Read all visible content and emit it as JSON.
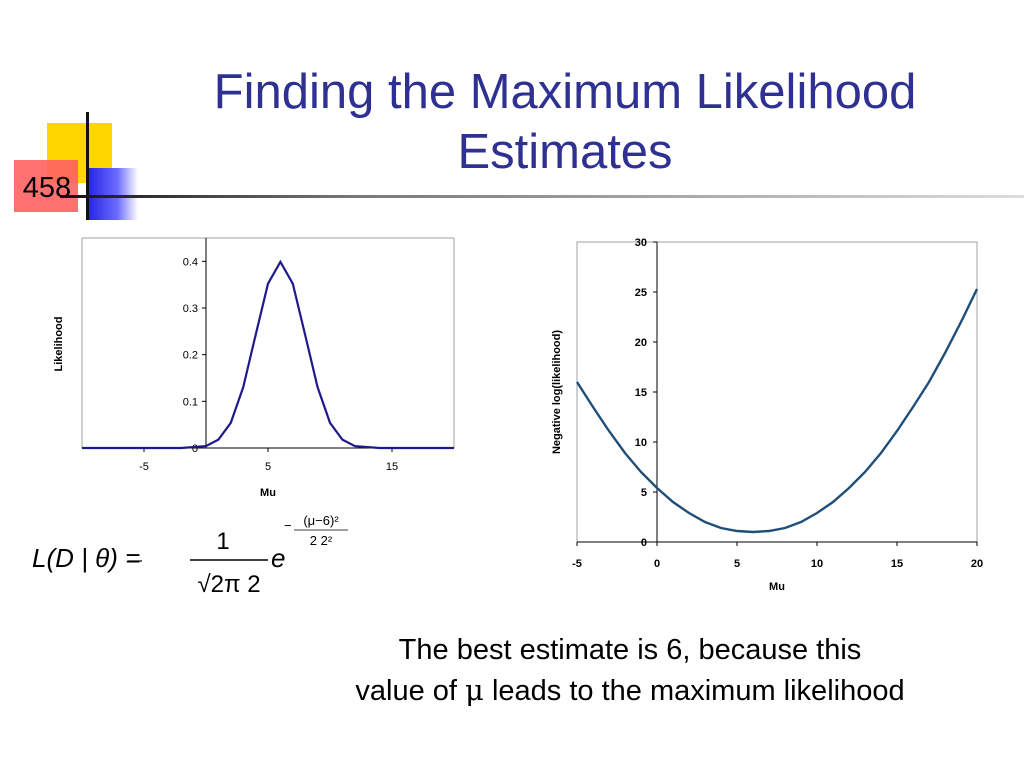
{
  "slide": {
    "number": "458",
    "title_line1": "Finding the Maximum Likelihood",
    "title_line2": "Estimates",
    "colors": {
      "title": "#2e3192",
      "curve_left": "#1f1a8c",
      "curve_right": "#1f4e79",
      "accent_yellow": "#ffd600",
      "accent_red": "#ff6060",
      "accent_blue": "#2020e0"
    }
  },
  "formula": {
    "lhs": "L(D | θ) =",
    "numerator": "1",
    "denominator": "√2π 2",
    "base": "e",
    "exponent_numerator": "(μ−6)²",
    "exponent_denominator": "2 2²",
    "exponent_sign": "−"
  },
  "conclusion": {
    "line1": "The best estimate is 6, because this",
    "line2_before": "value of ",
    "line2_symbol": "μ",
    "line2_after": " leads to the maximum likelihood"
  },
  "chart_data": [
    {
      "type": "line",
      "title": "",
      "xlabel": "Mu",
      "ylabel": "Likelihood",
      "xlim": [
        -10,
        20
      ],
      "ylim": [
        0,
        0.45
      ],
      "x_ticks": [
        "-5",
        "5",
        "15"
      ],
      "y_ticks": [
        "0",
        "0.1",
        "0.2",
        "0.3",
        "0.4"
      ],
      "grid": false,
      "series": [
        {
          "x": [
            -10,
            -8,
            -6,
            -4,
            -2,
            0,
            1,
            2,
            3,
            4,
            5,
            6,
            7,
            8,
            9,
            10,
            11,
            12,
            14,
            16,
            18,
            20
          ],
          "y": [
            0,
            0,
            0,
            0,
            0,
            0.004,
            0.018,
            0.054,
            0.13,
            0.242,
            0.352,
            0.399,
            0.352,
            0.242,
            0.13,
            0.054,
            0.018,
            0.004,
            0,
            0,
            0,
            0
          ]
        }
      ]
    },
    {
      "type": "line",
      "title": "",
      "xlabel": "Mu",
      "ylabel": "Negative log(likelihood)",
      "xlim": [
        -5,
        20
      ],
      "ylim": [
        0,
        30
      ],
      "x_ticks": [
        "-5",
        "0",
        "5",
        "10",
        "15",
        "20"
      ],
      "y_ticks": [
        "0",
        "5",
        "10",
        "15",
        "20",
        "25",
        "30"
      ],
      "grid": false,
      "series": [
        {
          "x": [
            -5,
            -4,
            -3,
            -2,
            -1,
            0,
            1,
            2,
            3,
            4,
            5,
            6,
            7,
            8,
            9,
            10,
            11,
            12,
            13,
            14,
            15,
            16,
            17,
            18,
            19,
            20
          ],
          "y": [
            16,
            13.5,
            11.1,
            8.9,
            7.0,
            5.4,
            4.0,
            2.9,
            2.0,
            1.4,
            1.1,
            1.0,
            1.1,
            1.4,
            2.0,
            2.9,
            4.0,
            5.4,
            7.0,
            8.9,
            11.1,
            13.5,
            16.0,
            18.9,
            22.0,
            25.3
          ]
        }
      ]
    }
  ]
}
